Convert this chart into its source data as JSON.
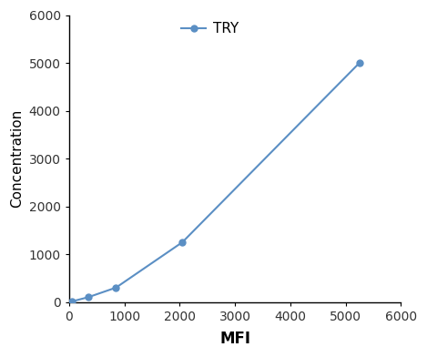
{
  "x": [
    50,
    350,
    850,
    2050,
    5250
  ],
  "y": [
    10,
    100,
    300,
    1250,
    5000
  ],
  "line_color": "#5b8fc4",
  "marker_color": "#5b8fc4",
  "marker_style": "o",
  "marker_size": 5,
  "line_width": 1.5,
  "xlabel": "MFI",
  "ylabel": "Concentration",
  "xlim": [
    0,
    6000
  ],
  "ylim": [
    0,
    6000
  ],
  "xticks": [
    0,
    1000,
    2000,
    3000,
    4000,
    5000,
    6000
  ],
  "yticks": [
    0,
    1000,
    2000,
    3000,
    4000,
    5000,
    6000
  ],
  "legend_label": "TRY",
  "xlabel_fontsize": 12,
  "ylabel_fontsize": 11,
  "tick_fontsize": 10,
  "legend_fontsize": 11,
  "background_color": "#ffffff",
  "figure_background": "#ffffff",
  "spine_color": "#000000"
}
